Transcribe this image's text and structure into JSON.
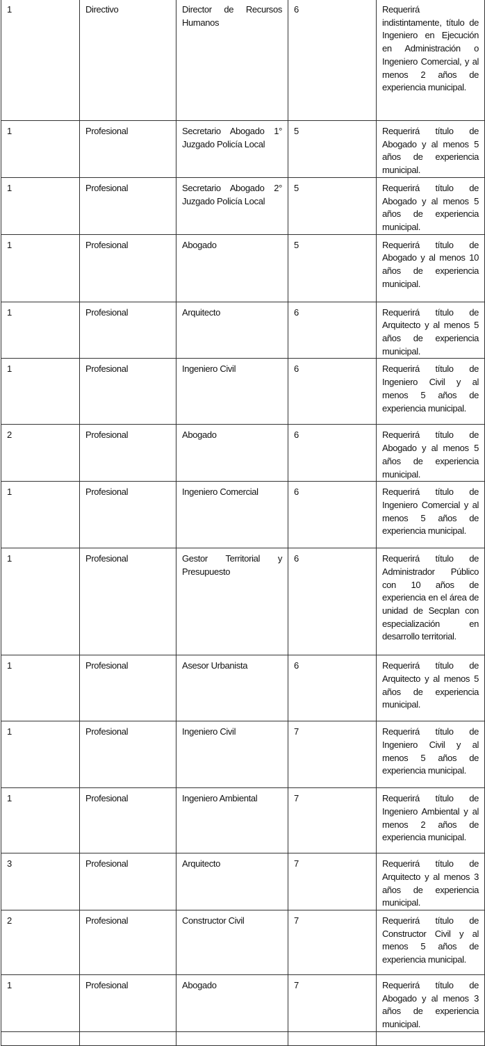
{
  "rows": [
    {
      "qty": "1",
      "category": "Directivo",
      "position": "Director de Recursos Humanos",
      "grade": "6",
      "requirement": "Requerirá indistintamente, título de Ingeniero en Ejecución en Administración o Ingeniero Comercial, y al menos 2 años de experiencia municipal."
    },
    {
      "qty": "1",
      "category": "Profesional",
      "position": "Secretario Abogado 1° Juzgado Policía Local",
      "grade": "5",
      "requirement": "Requerirá título de Abogado y al menos 5 años de experiencia municipal."
    },
    {
      "qty": "1",
      "category": "Profesional",
      "position": "Secretario Abogado 2° Juzgado Policía Local",
      "grade": "5",
      "requirement": "Requerirá título de Abogado y al menos 5 años de experiencia municipal."
    },
    {
      "qty": "1",
      "category": "Profesional",
      "position": "Abogado",
      "grade": "5",
      "requirement": "Requerirá título de Abogado y al menos 10 años de experiencia municipal."
    },
    {
      "qty": "1",
      "category": "Profesional",
      "position": "Arquitecto",
      "grade": "6",
      "requirement": "Requerirá título de Arquitecto y al menos 5 años de experiencia municipal."
    },
    {
      "qty": "1",
      "category": "Profesional",
      "position": "Ingeniero Civil",
      "grade": "6",
      "requirement": "Requerirá título de Ingeniero Civil y al menos 5 años de experiencia municipal."
    },
    {
      "qty": "2",
      "category": "Profesional",
      "position": "Abogado",
      "grade": "6",
      "requirement": "Requerirá título de Abogado y al menos 5 años de experiencia municipal."
    },
    {
      "qty": "1",
      "category": "Profesional",
      "position": "Ingeniero Comercial",
      "grade": "6",
      "requirement": "Requerirá título de Ingeniero Comercial y al menos 5 años de experiencia municipal."
    },
    {
      "qty": "1",
      "category": "Profesional",
      "position": "Gestor Territorial y Presupuesto",
      "grade": "6",
      "requirement": "Requerirá título de Administrador Público con 10 años de experiencia en el área de unidad de Secplan con especialización en desarrollo territorial."
    },
    {
      "qty": "1",
      "category": "Profesional",
      "position": "Asesor Urbanista",
      "grade": "6",
      "requirement": "Requerirá título de Arquitecto y al menos 5 años de experiencia municipal."
    },
    {
      "qty": "1",
      "category": "Profesional",
      "position": "Ingeniero Civil",
      "grade": "7",
      "requirement": "Requerirá título de Ingeniero Civil y al menos 5 años de experiencia municipal."
    },
    {
      "qty": "1",
      "category": "Profesional",
      "position": "Ingeniero Ambiental",
      "grade": "7",
      "requirement": "Requerirá título de Ingeniero Ambiental y al menos 2 años de experiencia municipal."
    },
    {
      "qty": "3",
      "category": "Profesional",
      "position": "Arquitecto",
      "grade": "7",
      "requirement": "Requerirá título de Arquitecto y al menos 3 años de experiencia municipal."
    },
    {
      "qty": "2",
      "category": "Profesional",
      "position": "Constructor Civil",
      "grade": "7",
      "requirement": "Requerirá título de Constructor Civil y al menos 5 años de experiencia municipal."
    },
    {
      "qty": "1",
      "category": "Profesional",
      "position": "Abogado",
      "grade": "7",
      "requirement": "Requerirá título de Abogado y al menos 3 años de experiencia municipal."
    }
  ]
}
